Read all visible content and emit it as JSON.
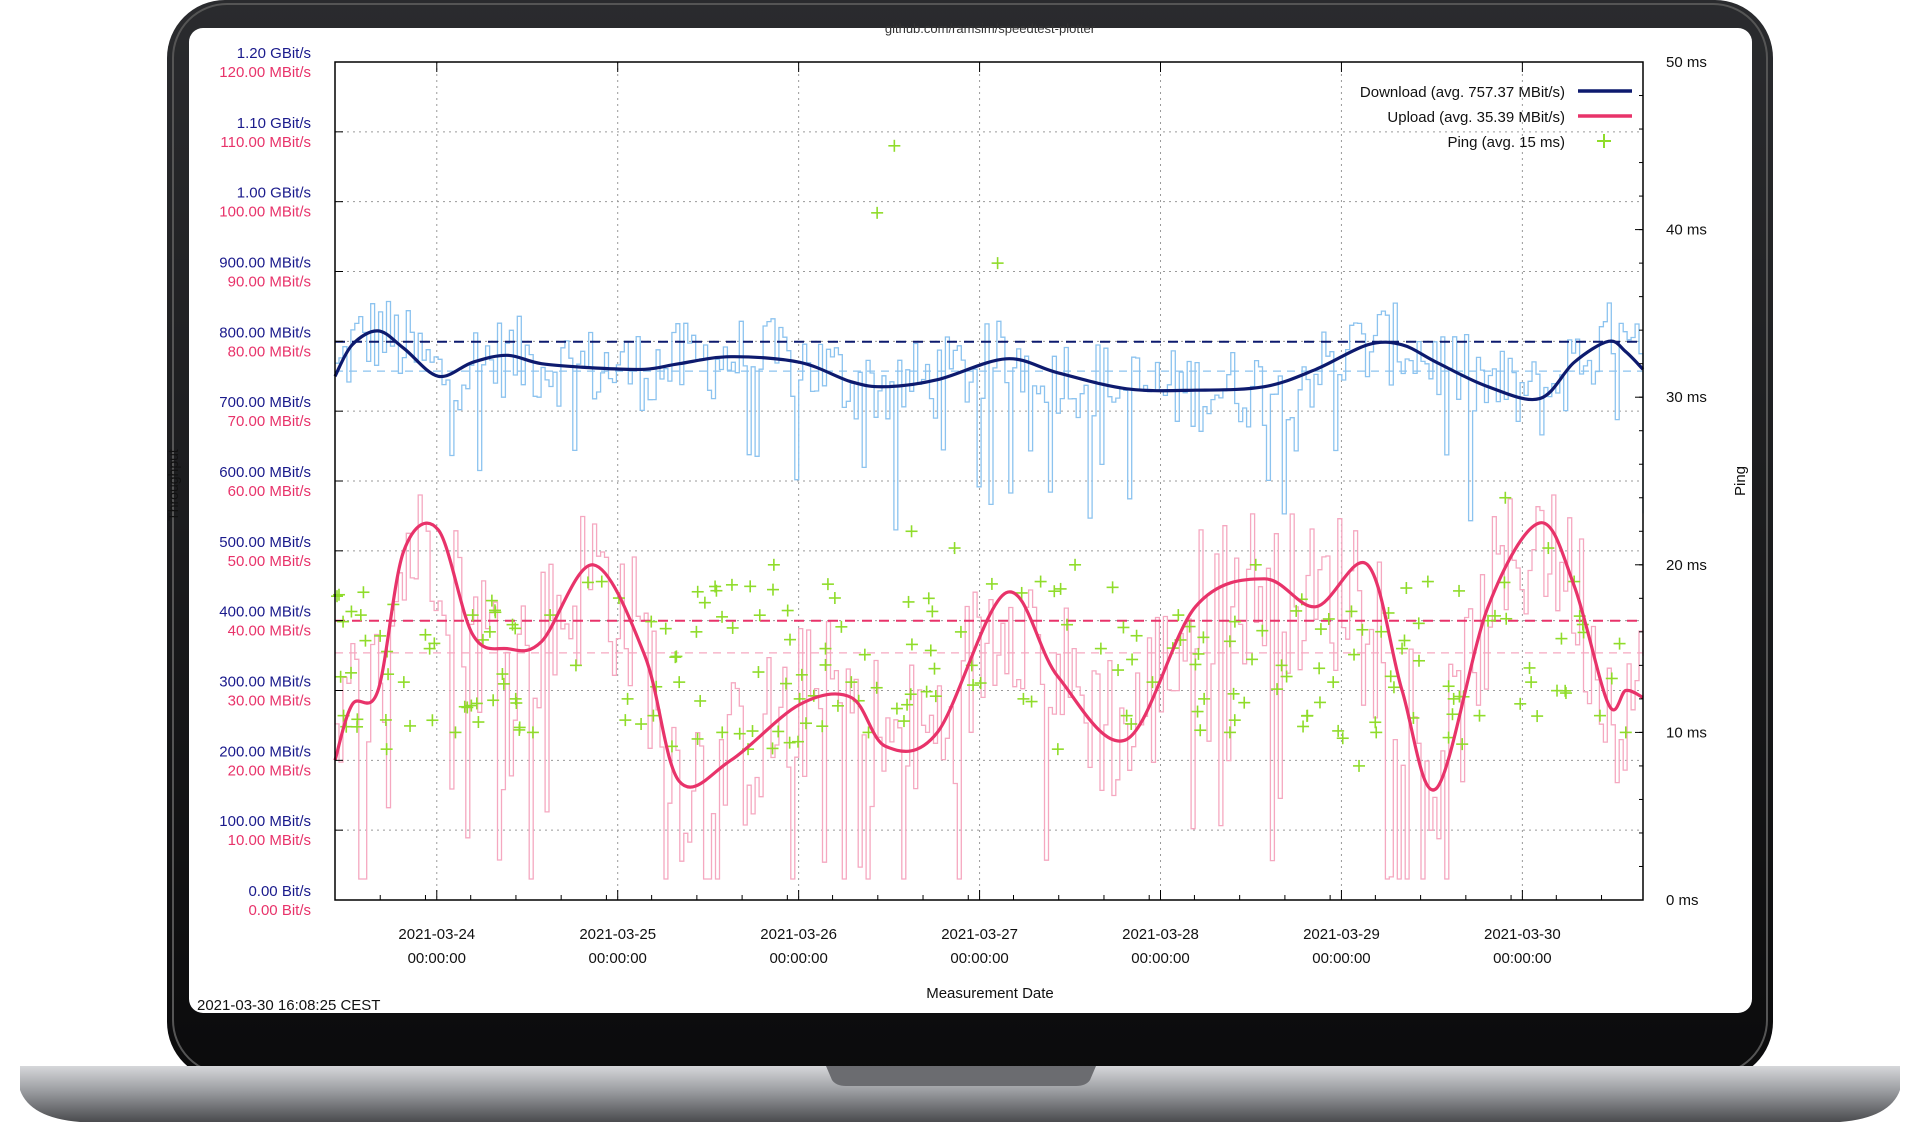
{
  "chart_data": {
    "type": "line",
    "title": "github.com/ramsim/speedtest-plotter",
    "xlabel": "Measurement Date",
    "ylabel_left": "Throughput",
    "ylabel_right": "Ping",
    "footer": "2021-03-30 16:08:25 CEST",
    "x_range": [
      "2021-03-23 10:30",
      "2021-03-30 16:00"
    ],
    "x_ticks": [
      {
        "date": "2021-03-24",
        "time": "00:00:00",
        "day": 1
      },
      {
        "date": "2021-03-25",
        "time": "00:00:00",
        "day": 2
      },
      {
        "date": "2021-03-26",
        "time": "00:00:00",
        "day": 3
      },
      {
        "date": "2021-03-27",
        "time": "00:00:00",
        "day": 4
      },
      {
        "date": "2021-03-28",
        "time": "00:00:00",
        "day": 5
      },
      {
        "date": "2021-03-29",
        "time": "00:00:00",
        "day": 6
      },
      {
        "date": "2021-03-30",
        "time": "00:00:00",
        "day": 7
      }
    ],
    "y_left_ticks_download": [
      "0.00  Bit/s",
      "100.00 MBit/s",
      "200.00 MBit/s",
      "300.00 MBit/s",
      "400.00 MBit/s",
      "500.00 MBit/s",
      "600.00 MBit/s",
      "700.00 MBit/s",
      "800.00 MBit/s",
      "900.00 MBit/s",
      "1.00 GBit/s",
      "1.10 GBit/s",
      "1.20 GBit/s"
    ],
    "y_left_ticks_upload": [
      "0.00  Bit/s",
      "10.00 MBit/s",
      "20.00 MBit/s",
      "30.00 MBit/s",
      "40.00 MBit/s",
      "50.00 MBit/s",
      "60.00 MBit/s",
      "70.00 MBit/s",
      "80.00 MBit/s",
      "90.00 MBit/s",
      "100.00 MBit/s",
      "110.00 MBit/s",
      "120.00 MBit/s"
    ],
    "y_right_ticks": [
      "0 ms",
      "10 ms",
      "20 ms",
      "30 ms",
      "40 ms",
      "50 ms"
    ],
    "y_download_range_mbit": [
      0,
      1200
    ],
    "y_upload_range_mbit": [
      0,
      120
    ],
    "y_ping_range_ms": [
      0,
      50
    ],
    "grid": true,
    "legend_position": "top-right",
    "series": [
      {
        "name": "Download (avg. 757.37 MBit/s)",
        "color": "#0d1a6e",
        "avg_mbit": 757.37,
        "smooth_x_day": [
          0,
          0.1,
          0.25,
          0.4,
          0.6,
          0.8,
          1,
          1.2,
          1.5,
          1.8,
          2.0,
          2.3,
          2.7,
          3.0,
          3.2,
          3.5,
          3.9,
          4.2,
          4.6,
          5.0,
          5.4,
          5.7,
          6.0,
          6.2,
          6.4,
          6.7,
          7.0,
          7.2,
          7.4,
          7.5,
          7.6
        ],
        "smooth_y_mbit": [
          750,
          795,
          815,
          790,
          750,
          770,
          780,
          768,
          762,
          760,
          768,
          778,
          770,
          742,
          735,
          745,
          775,
          755,
          732,
          730,
          735,
          760,
          795,
          795,
          770,
          735,
          718,
          770,
          800,
          785,
          760
        ],
        "raw_min_mbit": 530,
        "raw_max_mbit": 920
      },
      {
        "name": "Upload (avg. 35.39 MBit/s)",
        "color": "#e8336a",
        "avg_mbit": 35.39,
        "smooth_x_day": [
          0,
          0.1,
          0.25,
          0.4,
          0.6,
          0.8,
          1,
          1.2,
          1.5,
          1.8,
          2.0,
          2.3,
          2.7,
          3.0,
          3.2,
          3.5,
          3.9,
          4.2,
          4.6,
          5.0,
          5.4,
          5.7,
          6.0,
          6.2,
          6.4,
          6.7,
          7.0,
          7.2,
          7.4,
          7.5,
          7.6
        ],
        "smooth_y_mbit": [
          20,
          28,
          30,
          50,
          53,
          38,
          36,
          37,
          48,
          35,
          17,
          20,
          28,
          29,
          22,
          24,
          44,
          32,
          23,
          42,
          46,
          42,
          48,
          30,
          16,
          42,
          54,
          45,
          28,
          30,
          29
        ],
        "raw_min_mbit": 3,
        "raw_max_mbit": 58
      },
      {
        "name": "Ping (avg. 15 ms)",
        "color": "#8fdc2a",
        "marker": "+",
        "avg_ms": 15,
        "points_day": [
          0.05,
          0.15,
          0.3,
          0.4,
          0.55,
          0.7,
          0.8,
          0.9,
          1.05,
          1.15,
          1.25,
          1.4,
          1.55,
          1.7,
          1.85,
          2.0,
          2.1,
          2.25,
          2.4,
          2.55,
          2.7,
          2.85,
          3.0,
          3.1,
          3.15,
          3.25,
          3.35,
          3.45,
          3.6,
          3.7,
          3.85,
          4.0,
          4.1,
          4.2,
          4.3,
          4.45,
          4.6,
          4.75,
          4.9,
          5.05,
          5.2,
          5.35,
          5.5,
          5.65,
          5.8,
          5.95,
          6.05,
          6.2,
          6.35,
          6.5,
          6.65,
          6.8,
          6.95,
          7.05,
          7.2,
          7.35,
          7.5
        ],
        "points_ms": [
          11,
          17,
          9,
          13,
          15,
          10,
          17,
          16,
          12,
          10,
          17,
          14,
          19,
          12,
          11,
          13,
          16,
          10,
          9,
          20,
          12,
          15,
          13,
          10,
          41,
          45,
          22,
          18,
          21,
          14,
          38,
          12,
          19,
          9,
          20,
          15,
          11,
          13,
          17,
          12,
          10,
          20,
          14,
          11,
          13,
          8,
          10,
          15,
          19,
          12,
          11,
          24,
          13,
          21,
          19,
          11,
          10
        ]
      }
    ]
  }
}
